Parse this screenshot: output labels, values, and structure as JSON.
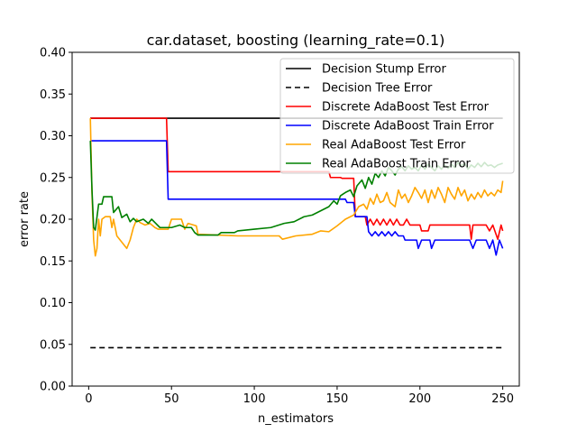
{
  "chart_data": {
    "type": "line",
    "title": "car.dataset, boosting (learning_rate=0.1)",
    "xlabel": "n_estimators",
    "ylabel": "error rate",
    "xlim": [
      -10,
      260
    ],
    "ylim": [
      0.0,
      0.4
    ],
    "xticks": [
      0,
      50,
      100,
      150,
      200,
      250
    ],
    "yticks": [
      0.0,
      0.05,
      0.1,
      0.15,
      0.2,
      0.25,
      0.3,
      0.35,
      0.4
    ],
    "xtick_labels": [
      "0",
      "50",
      "100",
      "150",
      "200",
      "250"
    ],
    "ytick_labels": [
      "0.00",
      "0.05",
      "0.10",
      "0.15",
      "0.20",
      "0.25",
      "0.30",
      "0.35",
      "0.40"
    ],
    "legend_position": "top-right",
    "series": [
      {
        "name": "Decision Stump Error",
        "color": "#000000",
        "style": "solid",
        "points": [
          [
            1,
            0.321
          ],
          [
            250,
            0.321
          ]
        ]
      },
      {
        "name": "Decision Tree Error",
        "color": "#000000",
        "style": "dashed",
        "points": [
          [
            1,
            0.046
          ],
          [
            250,
            0.046
          ]
        ]
      },
      {
        "name": "Discrete AdaBoost Test Error",
        "color": "#ff0000",
        "style": "solid",
        "points": [
          [
            1,
            0.321
          ],
          [
            47,
            0.321
          ],
          [
            48,
            0.257
          ],
          [
            145,
            0.257
          ],
          [
            146,
            0.25
          ],
          [
            152,
            0.25
          ],
          [
            153,
            0.249
          ],
          [
            160,
            0.249
          ],
          [
            161,
            0.203
          ],
          [
            167,
            0.203
          ],
          [
            168,
            0.193
          ],
          [
            170,
            0.2
          ],
          [
            172,
            0.193
          ],
          [
            174,
            0.2
          ],
          [
            176,
            0.193
          ],
          [
            178,
            0.2
          ],
          [
            180,
            0.193
          ],
          [
            182,
            0.2
          ],
          [
            184,
            0.193
          ],
          [
            186,
            0.2
          ],
          [
            188,
            0.193
          ],
          [
            190,
            0.193
          ],
          [
            192,
            0.2
          ],
          [
            194,
            0.193
          ],
          [
            200,
            0.193
          ],
          [
            201,
            0.186
          ],
          [
            205,
            0.186
          ],
          [
            206,
            0.193
          ],
          [
            230,
            0.193
          ],
          [
            231,
            0.176
          ],
          [
            232,
            0.193
          ],
          [
            240,
            0.193
          ],
          [
            242,
            0.186
          ],
          [
            244,
            0.193
          ],
          [
            247,
            0.176
          ],
          [
            249,
            0.193
          ],
          [
            250,
            0.186
          ]
        ]
      },
      {
        "name": "Discrete AdaBoost Train Error",
        "color": "#0000ff",
        "style": "solid",
        "points": [
          [
            1,
            0.294
          ],
          [
            47,
            0.294
          ],
          [
            48,
            0.224
          ],
          [
            155,
            0.224
          ],
          [
            156,
            0.22
          ],
          [
            160,
            0.22
          ],
          [
            161,
            0.203
          ],
          [
            168,
            0.203
          ],
          [
            169,
            0.185
          ],
          [
            171,
            0.18
          ],
          [
            173,
            0.185
          ],
          [
            175,
            0.18
          ],
          [
            177,
            0.185
          ],
          [
            179,
            0.18
          ],
          [
            181,
            0.185
          ],
          [
            183,
            0.18
          ],
          [
            185,
            0.185
          ],
          [
            187,
            0.18
          ],
          [
            190,
            0.18
          ],
          [
            191,
            0.175
          ],
          [
            198,
            0.175
          ],
          [
            199,
            0.165
          ],
          [
            201,
            0.175
          ],
          [
            206,
            0.175
          ],
          [
            207,
            0.165
          ],
          [
            209,
            0.175
          ],
          [
            230,
            0.175
          ],
          [
            232,
            0.165
          ],
          [
            234,
            0.175
          ],
          [
            240,
            0.175
          ],
          [
            242,
            0.165
          ],
          [
            244,
            0.175
          ],
          [
            246,
            0.157
          ],
          [
            248,
            0.175
          ],
          [
            250,
            0.165
          ]
        ]
      },
      {
        "name": "Real AdaBoost Test Error",
        "color": "#ffa500",
        "style": "solid",
        "points": [
          [
            1,
            0.321
          ],
          [
            2,
            0.23
          ],
          [
            3,
            0.175
          ],
          [
            4,
            0.156
          ],
          [
            5,
            0.165
          ],
          [
            6,
            0.2
          ],
          [
            7,
            0.18
          ],
          [
            8,
            0.2
          ],
          [
            10,
            0.203
          ],
          [
            13,
            0.203
          ],
          [
            14,
            0.19
          ],
          [
            15,
            0.2
          ],
          [
            17,
            0.18
          ],
          [
            19,
            0.175
          ],
          [
            21,
            0.17
          ],
          [
            23,
            0.165
          ],
          [
            25,
            0.175
          ],
          [
            27,
            0.19
          ],
          [
            29,
            0.2
          ],
          [
            31,
            0.196
          ],
          [
            34,
            0.193
          ],
          [
            37,
            0.195
          ],
          [
            40,
            0.19
          ],
          [
            42,
            0.188
          ],
          [
            48,
            0.188
          ],
          [
            50,
            0.2
          ],
          [
            56,
            0.2
          ],
          [
            58,
            0.188
          ],
          [
            60,
            0.195
          ],
          [
            65,
            0.192
          ],
          [
            66,
            0.182
          ],
          [
            90,
            0.18
          ],
          [
            115,
            0.18
          ],
          [
            117,
            0.176
          ],
          [
            125,
            0.18
          ],
          [
            135,
            0.182
          ],
          [
            140,
            0.186
          ],
          [
            145,
            0.185
          ],
          [
            150,
            0.192
          ],
          [
            155,
            0.2
          ],
          [
            160,
            0.205
          ],
          [
            163,
            0.215
          ],
          [
            166,
            0.218
          ],
          [
            168,
            0.212
          ],
          [
            170,
            0.225
          ],
          [
            172,
            0.218
          ],
          [
            174,
            0.23
          ],
          [
            176,
            0.22
          ],
          [
            178,
            0.222
          ],
          [
            180,
            0.232
          ],
          [
            182,
            0.22
          ],
          [
            185,
            0.215
          ],
          [
            187,
            0.235
          ],
          [
            189,
            0.225
          ],
          [
            191,
            0.23
          ],
          [
            193,
            0.22
          ],
          [
            195,
            0.228
          ],
          [
            197,
            0.238
          ],
          [
            199,
            0.232
          ],
          [
            201,
            0.225
          ],
          [
            203,
            0.235
          ],
          [
            205,
            0.22
          ],
          [
            207,
            0.235
          ],
          [
            209,
            0.225
          ],
          [
            211,
            0.238
          ],
          [
            213,
            0.23
          ],
          [
            215,
            0.22
          ],
          [
            217,
            0.238
          ],
          [
            219,
            0.23
          ],
          [
            221,
            0.224
          ],
          [
            223,
            0.238
          ],
          [
            225,
            0.228
          ],
          [
            227,
            0.235
          ],
          [
            229,
            0.222
          ],
          [
            231,
            0.23
          ],
          [
            233,
            0.224
          ],
          [
            235,
            0.232
          ],
          [
            237,
            0.226
          ],
          [
            239,
            0.235
          ],
          [
            241,
            0.228
          ],
          [
            243,
            0.232
          ],
          [
            245,
            0.228
          ],
          [
            247,
            0.235
          ],
          [
            249,
            0.232
          ],
          [
            250,
            0.246
          ]
        ]
      },
      {
        "name": "Real AdaBoost Train Error",
        "color": "#008000",
        "style": "solid",
        "points": [
          [
            1,
            0.294
          ],
          [
            2,
            0.235
          ],
          [
            3,
            0.19
          ],
          [
            4,
            0.187
          ],
          [
            6,
            0.218
          ],
          [
            8,
            0.218
          ],
          [
            9,
            0.227
          ],
          [
            14,
            0.227
          ],
          [
            15,
            0.208
          ],
          [
            18,
            0.215
          ],
          [
            20,
            0.202
          ],
          [
            23,
            0.206
          ],
          [
            25,
            0.197
          ],
          [
            27,
            0.201
          ],
          [
            29,
            0.197
          ],
          [
            33,
            0.2
          ],
          [
            36,
            0.195
          ],
          [
            38,
            0.2
          ],
          [
            40,
            0.196
          ],
          [
            43,
            0.19
          ],
          [
            50,
            0.19
          ],
          [
            55,
            0.193
          ],
          [
            58,
            0.19
          ],
          [
            62,
            0.19
          ],
          [
            64,
            0.184
          ],
          [
            66,
            0.181
          ],
          [
            78,
            0.181
          ],
          [
            80,
            0.184
          ],
          [
            88,
            0.184
          ],
          [
            90,
            0.186
          ],
          [
            100,
            0.188
          ],
          [
            110,
            0.19
          ],
          [
            118,
            0.195
          ],
          [
            124,
            0.197
          ],
          [
            130,
            0.203
          ],
          [
            135,
            0.205
          ],
          [
            140,
            0.21
          ],
          [
            145,
            0.215
          ],
          [
            148,
            0.222
          ],
          [
            150,
            0.218
          ],
          [
            152,
            0.228
          ],
          [
            155,
            0.232
          ],
          [
            158,
            0.235
          ],
          [
            160,
            0.227
          ],
          [
            162,
            0.24
          ],
          [
            165,
            0.247
          ],
          [
            167,
            0.237
          ],
          [
            169,
            0.25
          ],
          [
            171,
            0.242
          ],
          [
            173,
            0.255
          ],
          [
            175,
            0.25
          ],
          [
            177,
            0.258
          ],
          [
            179,
            0.252
          ],
          [
            181,
            0.262
          ],
          [
            183,
            0.258
          ],
          [
            185,
            0.253
          ],
          [
            187,
            0.26
          ],
          [
            189,
            0.263
          ],
          [
            191,
            0.258
          ],
          [
            193,
            0.264
          ],
          [
            195,
            0.26
          ],
          [
            197,
            0.262
          ],
          [
            199,
            0.258
          ],
          [
            201,
            0.265
          ],
          [
            203,
            0.26
          ],
          [
            205,
            0.266
          ],
          [
            207,
            0.262
          ],
          [
            209,
            0.258
          ],
          [
            211,
            0.264
          ],
          [
            213,
            0.26
          ],
          [
            215,
            0.265
          ],
          [
            217,
            0.261
          ],
          [
            219,
            0.266
          ],
          [
            221,
            0.262
          ],
          [
            223,
            0.268
          ],
          [
            225,
            0.264
          ],
          [
            227,
            0.267
          ],
          [
            229,
            0.26
          ],
          [
            231,
            0.265
          ],
          [
            233,
            0.262
          ],
          [
            235,
            0.267
          ],
          [
            237,
            0.263
          ],
          [
            239,
            0.268
          ],
          [
            241,
            0.264
          ],
          [
            243,
            0.265
          ],
          [
            245,
            0.262
          ],
          [
            247,
            0.265
          ],
          [
            250,
            0.267
          ]
        ]
      }
    ]
  }
}
